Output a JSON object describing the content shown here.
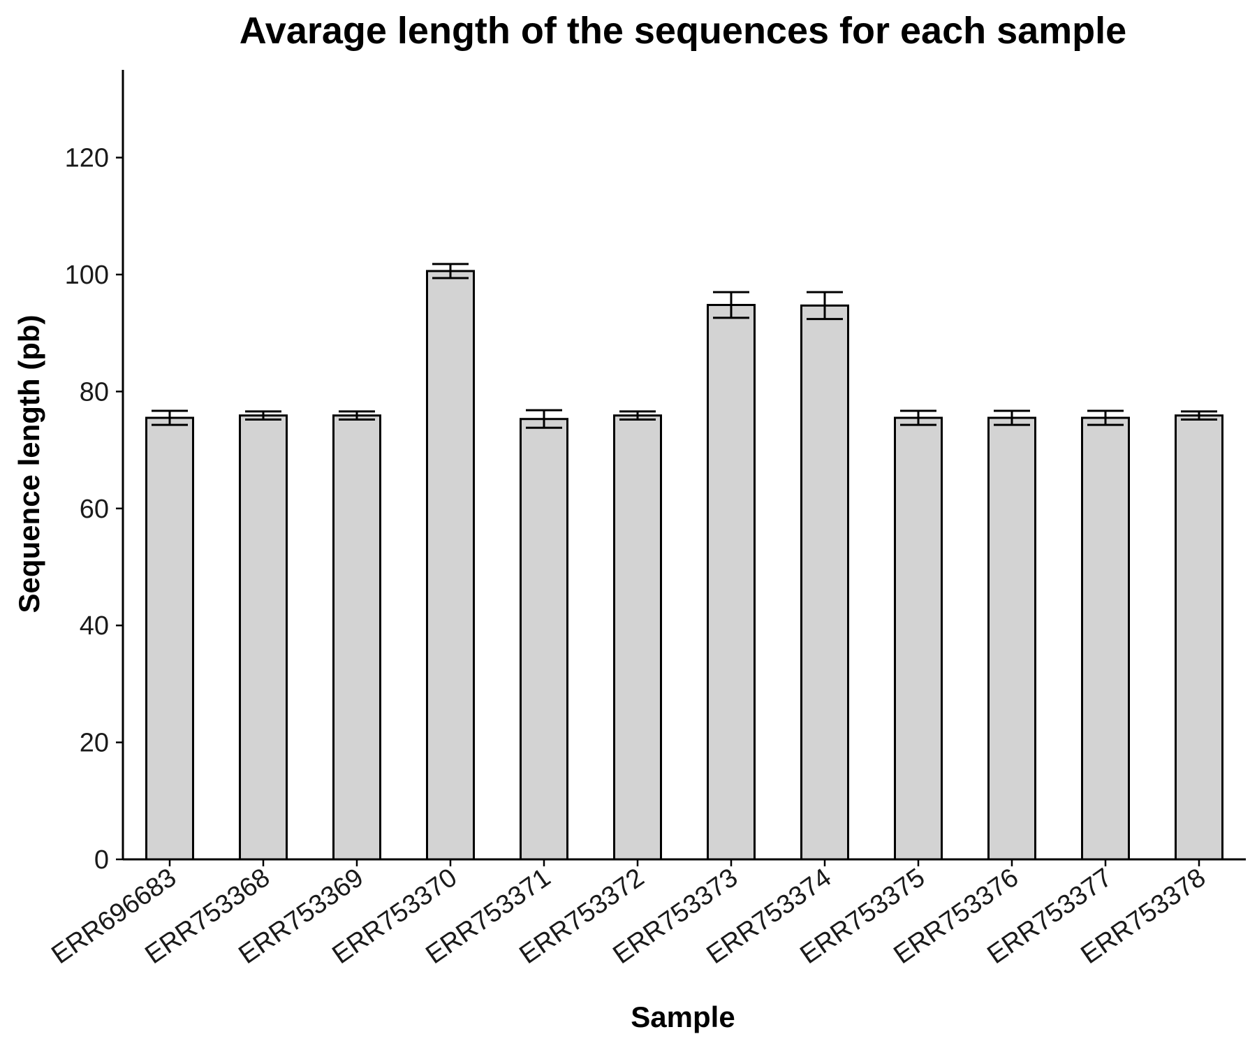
{
  "chart_data": {
    "type": "bar",
    "title": "Avarage length of the sequences for each sample",
    "xlabel": "Sample",
    "ylabel": "Sequence length (pb)",
    "ylim": [
      0,
      135
    ],
    "yticks": [
      0,
      20,
      40,
      60,
      80,
      100,
      120
    ],
    "grid": false,
    "legend": "none",
    "categories": [
      "ERR696683",
      "ERR753368",
      "ERR753369",
      "ERR753370",
      "ERR753371",
      "ERR753372",
      "ERR753373",
      "ERR753374",
      "ERR753375",
      "ERR753376",
      "ERR753377",
      "ERR753378"
    ],
    "values": [
      75.5,
      75.9,
      75.9,
      100.6,
      75.3,
      75.9,
      94.8,
      94.7,
      75.5,
      75.5,
      75.5,
      75.9
    ],
    "error": [
      1.2,
      0.7,
      0.7,
      1.2,
      1.5,
      0.7,
      2.2,
      2.3,
      1.2,
      1.2,
      1.2,
      0.7
    ],
    "colors": {
      "bar_fill": "#d3d3d3",
      "bar_stroke": "#000000",
      "axis": "#000000"
    }
  }
}
